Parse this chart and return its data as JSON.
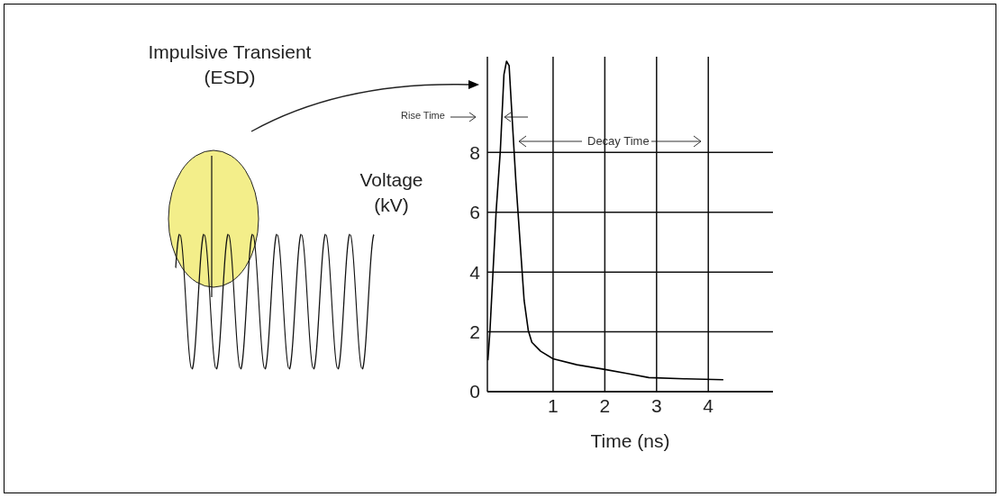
{
  "chart_data": {
    "type": "line",
    "xlabel": "Time (ns)",
    "ylabel": "Voltage (kV)",
    "annotations": [
      "Impulsive Transient (ESD)",
      "Rise Time",
      "Decay Time"
    ],
    "series": [
      {
        "color": "#000000",
        "x": [
          -0.26,
          -0.22,
          -0.16,
          -0.1,
          -0.02,
          0.05,
          0.1,
          0.15,
          0.21,
          0.28,
          0.36,
          0.44,
          0.52,
          0.59,
          0.76,
          1.0,
          1.46,
          1.98,
          2.45,
          2.85,
          3.54,
          4.29
        ],
        "values": [
          1.05,
          2.05,
          4.05,
          6.05,
          8.05,
          10.6,
          11.05,
          10.9,
          9.1,
          7.05,
          5.05,
          3.05,
          2.05,
          1.65,
          1.35,
          1.1,
          0.9,
          0.75,
          0.6,
          0.47,
          0.43,
          0.4
        ]
      }
    ],
    "xlim": [
      -0.27,
      5.25
    ],
    "xticks": [
      1,
      2,
      3,
      4
    ],
    "ylim": [
      0,
      11.2
    ],
    "yticks": [
      0,
      2,
      4,
      6,
      8
    ],
    "grid": true,
    "marker": "none",
    "line_style": "solid"
  }
}
